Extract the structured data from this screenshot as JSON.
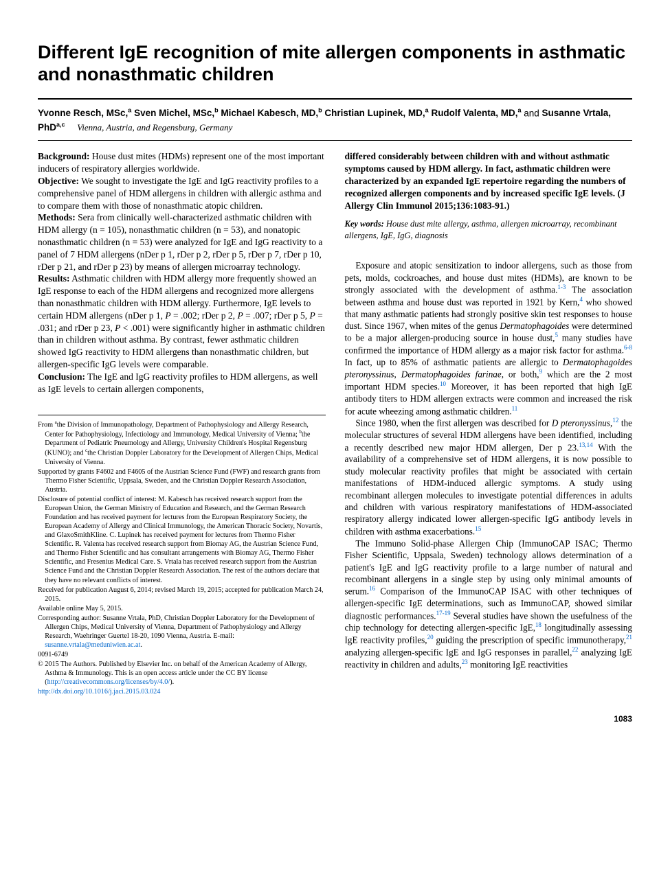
{
  "title": "Different IgE recognition of mite allergen components in asthmatic and nonasthmatic children",
  "authors_html": "<span class='name'>Yvonne Resch, MSc,<sup>a</sup> Sven Michel, MSc,<sup>b</sup> Michael Kabesch, MD,<sup>b</sup> Christian Lupinek, MD,<sup>a</sup> Rudolf Valenta, MD,<sup>a</sup></span> and <span class='name'>Susanne Vrtala, PhD<sup>a,c</sup></span>",
  "affiliation": "Vienna, Austria, and Regensburg, Germany",
  "abstract": {
    "background_label": "Background:",
    "background": "House dust mites (HDMs) represent one of the most important inducers of respiratory allergies worldwide.",
    "objective_label": "Objective:",
    "objective": "We sought to investigate the IgE and IgG reactivity profiles to a comprehensive panel of HDM allergens in children with allergic asthma and to compare them with those of nonasthmatic atopic children.",
    "methods_label": "Methods:",
    "methods": "Sera from clinically well-characterized asthmatic children with HDM allergy (n = 105), nonasthmatic children (n = 53), and nonatopic nonasthmatic children (n = 53) were analyzed for IgE and IgG reactivity to a panel of 7 HDM allergens (nDer p 1, rDer p 2, rDer p 5, rDer p 7, rDer p 10, rDer p 21, and rDer p 23) by means of allergen microarray technology.",
    "results_label": "Results:",
    "results": "Asthmatic children with HDM allergy more frequently showed an IgE response to each of the HDM allergens and recognized more allergens than nonasthmatic children with HDM allergy. Furthermore, IgE levels to certain HDM allergens (nDer p 1, <i>P</i> = .002; rDer p 2, <i>P</i> = .007; rDer p 5, <i>P</i> = .031; and rDer p 23, <i>P</i> < .001) were significantly higher in asthmatic children than in children without asthma. By contrast, fewer asthmatic children showed IgG reactivity to HDM allergens than nonasthmatic children, but allergen-specific IgG levels were comparable.",
    "conclusion_label": "Conclusion:",
    "conclusion_left": "The IgE and IgG reactivity profiles to HDM allergens, as well as IgE levels to certain allergen components,",
    "conclusion_right": "differed considerably between children with and without asthmatic symptoms caused by HDM allergy. In fact, asthmatic children were characterized by an expanded IgE repertoire regarding the numbers of recognized allergen components and by increased specific IgE levels. (J Allergy Clin Immunol 2015;136:1083-91.)"
  },
  "keywords_label": "Key words:",
  "keywords": "House dust mite allergy, asthma, allergen microarray, recombinant allergens, IgE, IgG, diagnosis",
  "body": {
    "p1": "Exposure and atopic sensitization to indoor allergens, such as those from pets, molds, cockroaches, and house dust mites (HDMs), are known to be strongly associated with the development of asthma.<sup>1-3</sup> The association between asthma and house dust was reported in 1921 by Kern,<sup>4</sup> who showed that many asthmatic patients had strongly positive skin test responses to house dust. Since 1967, when mites of the genus <i>Dermatophagoides</i> were determined to be a major allergen-producing source in house dust,<sup>5</sup> many studies have confirmed the importance of HDM allergy as a major risk factor for asthma.<sup>6-8</sup> In fact, up to 85% of asthmatic patients are allergic to <i>Dermatophagoides pteronyssinus</i>, <i>Dermatophagoides farinae</i>, or both,<sup>9</sup> which are the 2 most important HDM species.<sup>10</sup> Moreover, it has been reported that high IgE antibody titers to HDM allergen extracts were common and increased the risk for acute wheezing among asthmatic children.<sup>11</sup>",
    "p2": "Since 1980, when the first allergen was described for <i>D pteronyssinus</i>,<sup>12</sup> the molecular structures of several HDM allergens have been identified, including a recently described new major HDM allergen, Der p 23.<sup>13,14</sup> With the availability of a comprehensive set of HDM allergens, it is now possible to study molecular reactivity profiles that might be associated with certain manifestations of HDM-induced allergic symptoms. A study using recombinant allergen molecules to investigate potential differences in adults and children with various respiratory manifestations of HDM-associated respiratory allergy indicated lower allergen-specific IgG antibody levels in children with asthma exacerbations.<sup>15</sup>",
    "p3": "The Immuno Solid-phase Allergen Chip (ImmunoCAP ISAC; Thermo Fisher Scientific, Uppsala, Sweden) technology allows determination of a patient's IgE and IgG reactivity profile to a large number of natural and recombinant allergens in a single step by using only minimal amounts of serum.<sup>16</sup> Comparison of the ImmunoCAP ISAC with other techniques of allergen-specific IgE determinations, such as ImmunoCAP, showed similar diagnostic performances.<sup>17-19</sup> Several studies have shown the usefulness of the chip technology for detecting allergen-specific IgE,<sup>18</sup> longitudinally assessing IgE reactivity profiles,<sup>20</sup> guiding the prescription of specific immunotherapy,<sup>21</sup> analyzing allergen-specific IgE and IgG responses in parallel,<sup>22</sup> analyzing IgE reactivity in children and adults,<sup>23</sup> monitoring IgE reactivities"
  },
  "footnotes": {
    "from": "From <sup>a</sup>the Division of Immunopathology, Department of Pathophysiology and Allergy Research, Center for Pathophysiology, Infectiology and Immunology, Medical University of Vienna; <sup>b</sup>the Department of Pediatric Pneumology and Allergy, University Children's Hospital Regensburg (KUNO); and <sup>c</sup>the Christian Doppler Laboratory for the Development of Allergen Chips, Medical University of Vienna.",
    "supported": "Supported by grants F4602 and F4605 of the Austrian Science Fund (FWF) and research grants from Thermo Fisher Scientific, Uppsala, Sweden, and the Christian Doppler Research Association, Austria.",
    "disclosure": "Disclosure of potential conflict of interest: M. Kabesch has received research support from the European Union, the German Ministry of Education and Research, and the German Research Foundation and has received payment for lectures from the European Respiratory Society, the European Academy of Allergy and Clinical Immunology, the American Thoracic Society, Novartis, and GlaxoSmithKline. C. Lupinek has received payment for lectures from Thermo Fisher Scientific. R. Valenta has received research support from Biomay AG, the Austrian Science Fund, and Thermo Fisher Scientific and has consultant arrangements with Biomay AG, Thermo Fisher Scientific, and Fresenius Medical Care. S. Vrtala has received research support from the Austrian Science Fund and the Christian Doppler Research Association. The rest of the authors declare that they have no relevant conflicts of interest.",
    "received": "Received for publication August 6, 2014; revised March 19, 2015; accepted for publication March 24, 2015.",
    "available": "Available online May 5, 2015.",
    "corresponding": "Corresponding author: Susanne Vrtala, PhD, Christian Doppler Laboratory for the Development of Allergen Chips, Medical University of Vienna, Department of Pathophysiology and Allergy Research, Waehringer Guertel 18-20, 1090 Vienna, Austria. E-mail: ",
    "email": "susanne.vrtala@meduniwien.ac.at",
    "issn": "0091-6749",
    "copyright": "© 2015 The Authors. Published by Elsevier Inc. on behalf of the American Academy of Allergy, Asthma & Immunology. This is an open access article under the CC BY license (",
    "cc_url": "http://creativecommons.org/licenses/by/4.0/",
    "cc_close": ").",
    "doi": "http://dx.doi.org/10.1016/j.jaci.2015.03.024"
  },
  "page_number": "1083"
}
